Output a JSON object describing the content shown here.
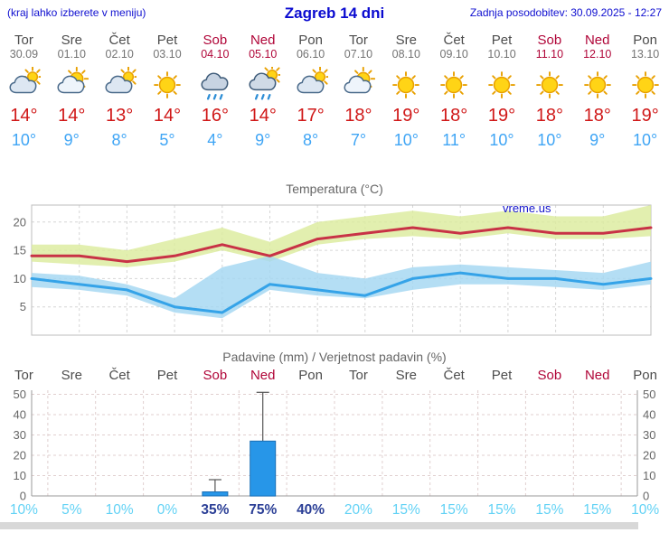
{
  "header": {
    "location_note": "(kraj lahko izberete v meniju)",
    "title": "Zagreb 14 dni",
    "last_update": "Zadnja posodobitev: 30.09.2025 - 12:27"
  },
  "degree_suffix": "°",
  "days": [
    {
      "name": "Tor",
      "date": "30.09",
      "weekend": false,
      "icon": "mostly-cloudy",
      "high": 14,
      "low": 10
    },
    {
      "name": "Sre",
      "date": "01.10",
      "weekend": false,
      "icon": "partly-cloudy",
      "high": 14,
      "low": 9
    },
    {
      "name": "Čet",
      "date": "02.10",
      "weekend": false,
      "icon": "mostly-cloudy",
      "high": 13,
      "low": 8
    },
    {
      "name": "Pet",
      "date": "03.10",
      "weekend": false,
      "icon": "sunny",
      "high": 14,
      "low": 5
    },
    {
      "name": "Sob",
      "date": "04.10",
      "weekend": true,
      "icon": "rain",
      "high": 16,
      "low": 4
    },
    {
      "name": "Ned",
      "date": "05.10",
      "weekend": true,
      "icon": "rain-sun",
      "high": 14,
      "low": 9
    },
    {
      "name": "Pon",
      "date": "06.10",
      "weekend": false,
      "icon": "mostly-cloudy",
      "high": 17,
      "low": 8
    },
    {
      "name": "Tor",
      "date": "07.10",
      "weekend": false,
      "icon": "partly-cloudy",
      "high": 18,
      "low": 7
    },
    {
      "name": "Sre",
      "date": "08.10",
      "weekend": false,
      "icon": "sunny",
      "high": 19,
      "low": 10
    },
    {
      "name": "Čet",
      "date": "09.10",
      "weekend": false,
      "icon": "sunny",
      "high": 18,
      "low": 11
    },
    {
      "name": "Pet",
      "date": "10.10",
      "weekend": false,
      "icon": "sunny",
      "high": 19,
      "low": 10
    },
    {
      "name": "Sob",
      "date": "11.10",
      "weekend": true,
      "icon": "sunny",
      "high": 18,
      "low": 10
    },
    {
      "name": "Ned",
      "date": "12.10",
      "weekend": true,
      "icon": "sunny",
      "high": 18,
      "low": 9
    },
    {
      "name": "Pon",
      "date": "13.10",
      "weekend": false,
      "icon": "sunny",
      "high": 19,
      "low": 10
    }
  ],
  "chart_data": [
    {
      "type": "line",
      "title": "Temperatura (°C)",
      "watermark": "vreme.us",
      "categories": [
        "Tor",
        "Sre",
        "Čet",
        "Pet",
        "Sob",
        "Ned",
        "Pon",
        "Tor",
        "Sre",
        "Čet",
        "Pet",
        "Sob",
        "Ned",
        "Pon"
      ],
      "ylim": [
        0,
        23
      ],
      "yticks": [
        5,
        10,
        15,
        20
      ],
      "grid": true,
      "legend": "none",
      "series": [
        {
          "name": "max-temperature",
          "color": "#c83246",
          "values": [
            14,
            14,
            13,
            14,
            16,
            14,
            17,
            18,
            19,
            18,
            19,
            18,
            18,
            19
          ]
        },
        {
          "name": "min-temperature",
          "color": "#35a3e8",
          "values": [
            10,
            9,
            8,
            5,
            4,
            9,
            8,
            7,
            10,
            11,
            10,
            10,
            9,
            10
          ]
        }
      ],
      "bands": [
        {
          "name": "max-range",
          "color": "#dcec9e",
          "upper": [
            16,
            16,
            15,
            17,
            19,
            16.5,
            20,
            21,
            22,
            21,
            22,
            21,
            21,
            23
          ],
          "lower": [
            13,
            12.5,
            12,
            13,
            15,
            13,
            16,
            17,
            17.5,
            17,
            18,
            17,
            17,
            17.5
          ]
        },
        {
          "name": "min-range",
          "color": "#a4d7f2",
          "upper": [
            11,
            10.5,
            9,
            6.5,
            12,
            14,
            11,
            10,
            12,
            12.5,
            12,
            11.5,
            11,
            13
          ],
          "lower": [
            8.5,
            8,
            7,
            4,
            3,
            8,
            7,
            6.5,
            8,
            9,
            9,
            8.5,
            8,
            9
          ]
        }
      ]
    },
    {
      "type": "bar",
      "title": "Padavine (mm) / Verjetnost padavin (%)",
      "categories": [
        "Tor",
        "Sre",
        "Čet",
        "Pet",
        "Sob",
        "Ned",
        "Pon",
        "Tor",
        "Sre",
        "Čet",
        "Pet",
        "Sob",
        "Ned",
        "Pon"
      ],
      "ylim": [
        0,
        52
      ],
      "yticks": [
        0,
        10,
        20,
        30,
        40,
        50
      ],
      "values": [
        0,
        0,
        0,
        0,
        2,
        27,
        0,
        0,
        0,
        0,
        0,
        0,
        0,
        0
      ],
      "whisker_top": [
        0,
        0,
        0,
        0,
        8,
        51,
        0,
        0,
        0,
        0,
        0,
        0,
        0,
        0
      ],
      "probabilities": [
        "10%",
        "5%",
        "10%",
        "0%",
        "35%",
        "75%",
        "40%",
        "20%",
        "15%",
        "15%",
        "15%",
        "15%",
        "15%",
        "10%"
      ],
      "probability_emphasis_indices": [
        4,
        5,
        6
      ],
      "bar_color": "#2796e8"
    }
  ],
  "colors": {
    "link_blue": "#0f0fd0",
    "weekday": "#4d4d4d",
    "date": "#737373",
    "weekend": "#b00538",
    "temp_high": "#d01818",
    "temp_low": "#3fa5f5",
    "grid": "#d6d6d6",
    "axis": "#9a9a9a",
    "prob": "#62d2f5",
    "prob_emphasis": "#2b3f96",
    "bar_stroke": "#1a6fb5",
    "footer_bar": "#d8d8d8"
  }
}
